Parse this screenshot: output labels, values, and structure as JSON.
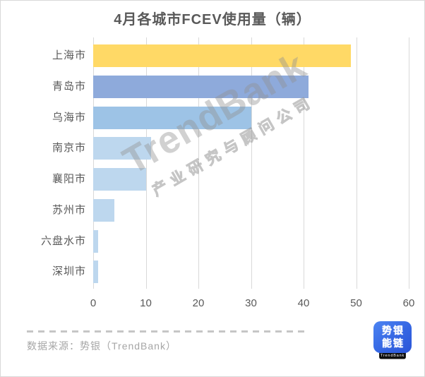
{
  "title": "4月各城市FCEV使用量（辆）",
  "chart_data": {
    "type": "bar",
    "orientation": "horizontal",
    "title": "4月各城市FCEV使用量（辆）",
    "categories": [
      "上海市",
      "青岛市",
      "乌海市",
      "南京市",
      "襄阳市",
      "苏州市",
      "六盘水市",
      "深圳市"
    ],
    "values": [
      49,
      41,
      30,
      11,
      10,
      4,
      1,
      1
    ],
    "bar_colors": [
      "#FFD966",
      "#8EAADB",
      "#9DC3E6",
      "#BDD7EE",
      "#BDD7EE",
      "#BDD7EE",
      "#BDD7EE",
      "#BDD7EE"
    ],
    "xlim": [
      0,
      60
    ],
    "x_ticks": [
      0,
      10,
      20,
      30,
      40,
      50,
      60
    ],
    "grid": true,
    "gridline_color": "#d9d9d9",
    "label_color": "#595959"
  },
  "watermark": {
    "line1": "TrendBank",
    "line2": "产业研究与顾问公司"
  },
  "footer": {
    "source_text": "数据来源：势银（TrendBank）"
  },
  "logo": {
    "line1": "势银",
    "line2": "能链",
    "caption": "TrendBank",
    "bg_color": "#3566E3",
    "strip_color": "#0E0E0E"
  }
}
